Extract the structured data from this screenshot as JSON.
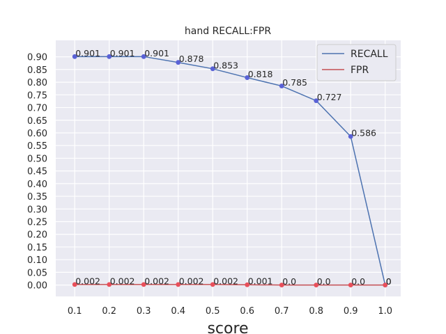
{
  "chart_data": {
    "type": "line",
    "title": "hand RECALL:FPR",
    "xlabel": "score",
    "ylabel": "",
    "x": [
      0.1,
      0.2,
      0.3,
      0.4,
      0.5,
      0.6,
      0.7,
      0.8,
      0.9,
      1.0
    ],
    "xticks": [
      "0.1",
      "0.2",
      "0.3",
      "0.4",
      "0.5",
      "0.6",
      "0.7",
      "0.8",
      "0.9",
      "1.0"
    ],
    "yticks": [
      "0.00",
      "0.05",
      "0.10",
      "0.15",
      "0.20",
      "0.25",
      "0.30",
      "0.35",
      "0.40",
      "0.45",
      "0.50",
      "0.55",
      "0.60",
      "0.65",
      "0.70",
      "0.75",
      "0.80",
      "0.85",
      "0.90"
    ],
    "xlim": [
      0.045,
      1.045
    ],
    "ylim": [
      -0.045,
      0.965
    ],
    "grid": true,
    "legend_position": "top-right",
    "series": [
      {
        "name": "RECALL",
        "color": "#4c72b0",
        "marker_color": "#5a62d6",
        "values": [
          0.901,
          0.901,
          0.901,
          0.878,
          0.853,
          0.818,
          0.785,
          0.727,
          0.586,
          0
        ],
        "labels": [
          "0.901",
          "0.901",
          "0.901",
          "0.878",
          "0.853",
          "0.818",
          "0.785",
          "0.727",
          "0.586",
          "0"
        ]
      },
      {
        "name": "FPR",
        "color": "#c44e52",
        "marker_color": "#e8505b",
        "values": [
          0.002,
          0.002,
          0.002,
          0.002,
          0.002,
          0.001,
          0.0,
          0.0,
          0.0,
          0
        ],
        "labels": [
          "0.002",
          "0.002",
          "0.002",
          "0.002",
          "0.002",
          "0.001",
          "0.0",
          "0.0",
          "0.0",
          "0"
        ]
      }
    ]
  }
}
